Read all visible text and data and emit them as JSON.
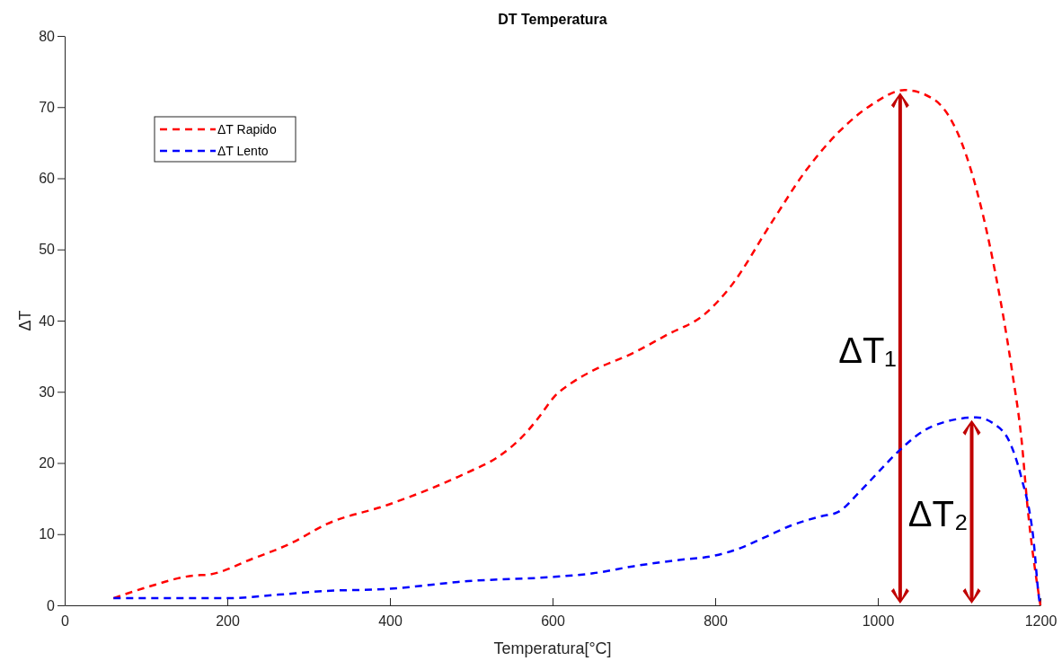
{
  "chart_data": {
    "type": "line",
    "title": "DT Temperatura",
    "xlabel": "Temperatura[°C]",
    "ylabel": "ΔT",
    "xlim": [
      0,
      1200
    ],
    "xticks": [
      0,
      200,
      400,
      600,
      800,
      1000,
      1200
    ],
    "ylim": [
      0,
      80
    ],
    "yticks": [
      0,
      10,
      20,
      30,
      40,
      50,
      60,
      70,
      80
    ],
    "grid": false,
    "legend": "top left",
    "line_style": "dashed",
    "marker": "none",
    "series": [
      {
        "name": "ΔT Rapido",
        "color": "#ff0000",
        "x": [
          60,
          100,
          160,
          176,
          230,
          278,
          322,
          397,
          496,
          531,
          567,
          583,
          602,
          624,
          650,
          700,
          739,
          788,
          817,
          870,
          911,
          952,
          992,
          1033,
          1070,
          1115,
          1144,
          1165,
          1177,
          1184,
          1200
        ],
        "values": [
          1,
          2.5,
          4.2,
          4.3,
          6.5,
          8.7,
          11.4,
          14.1,
          18.7,
          20.7,
          24.2,
          26.4,
          29.3,
          31.3,
          33,
          35.5,
          37.9,
          41,
          44.5,
          53.9,
          61,
          66.5,
          70.3,
          72.4,
          71,
          61,
          47,
          33,
          23,
          14,
          0
        ]
      },
      {
        "name": "ΔT Lento",
        "color": "#0000ff",
        "x": [
          60,
          200,
          263,
          318,
          397,
          496,
          602,
          650,
          700,
          750,
          800,
          830,
          860,
          893,
          930,
          951,
          978,
          1003,
          1025,
          1066,
          1121,
          1144,
          1161,
          1176,
          1191,
          1199,
          1200
        ],
        "values": [
          1,
          1,
          1.5,
          2,
          2.3,
          3.4,
          4,
          4.5,
          5.5,
          6.3,
          7,
          8,
          9.5,
          11.2,
          12.5,
          13.1,
          16,
          19,
          21.6,
          25.1,
          26.4,
          25.4,
          23.2,
          18.2,
          9.7,
          0.5,
          0
        ]
      }
    ],
    "annotations": [
      "ΔT₁",
      "ΔT₂"
    ]
  }
}
